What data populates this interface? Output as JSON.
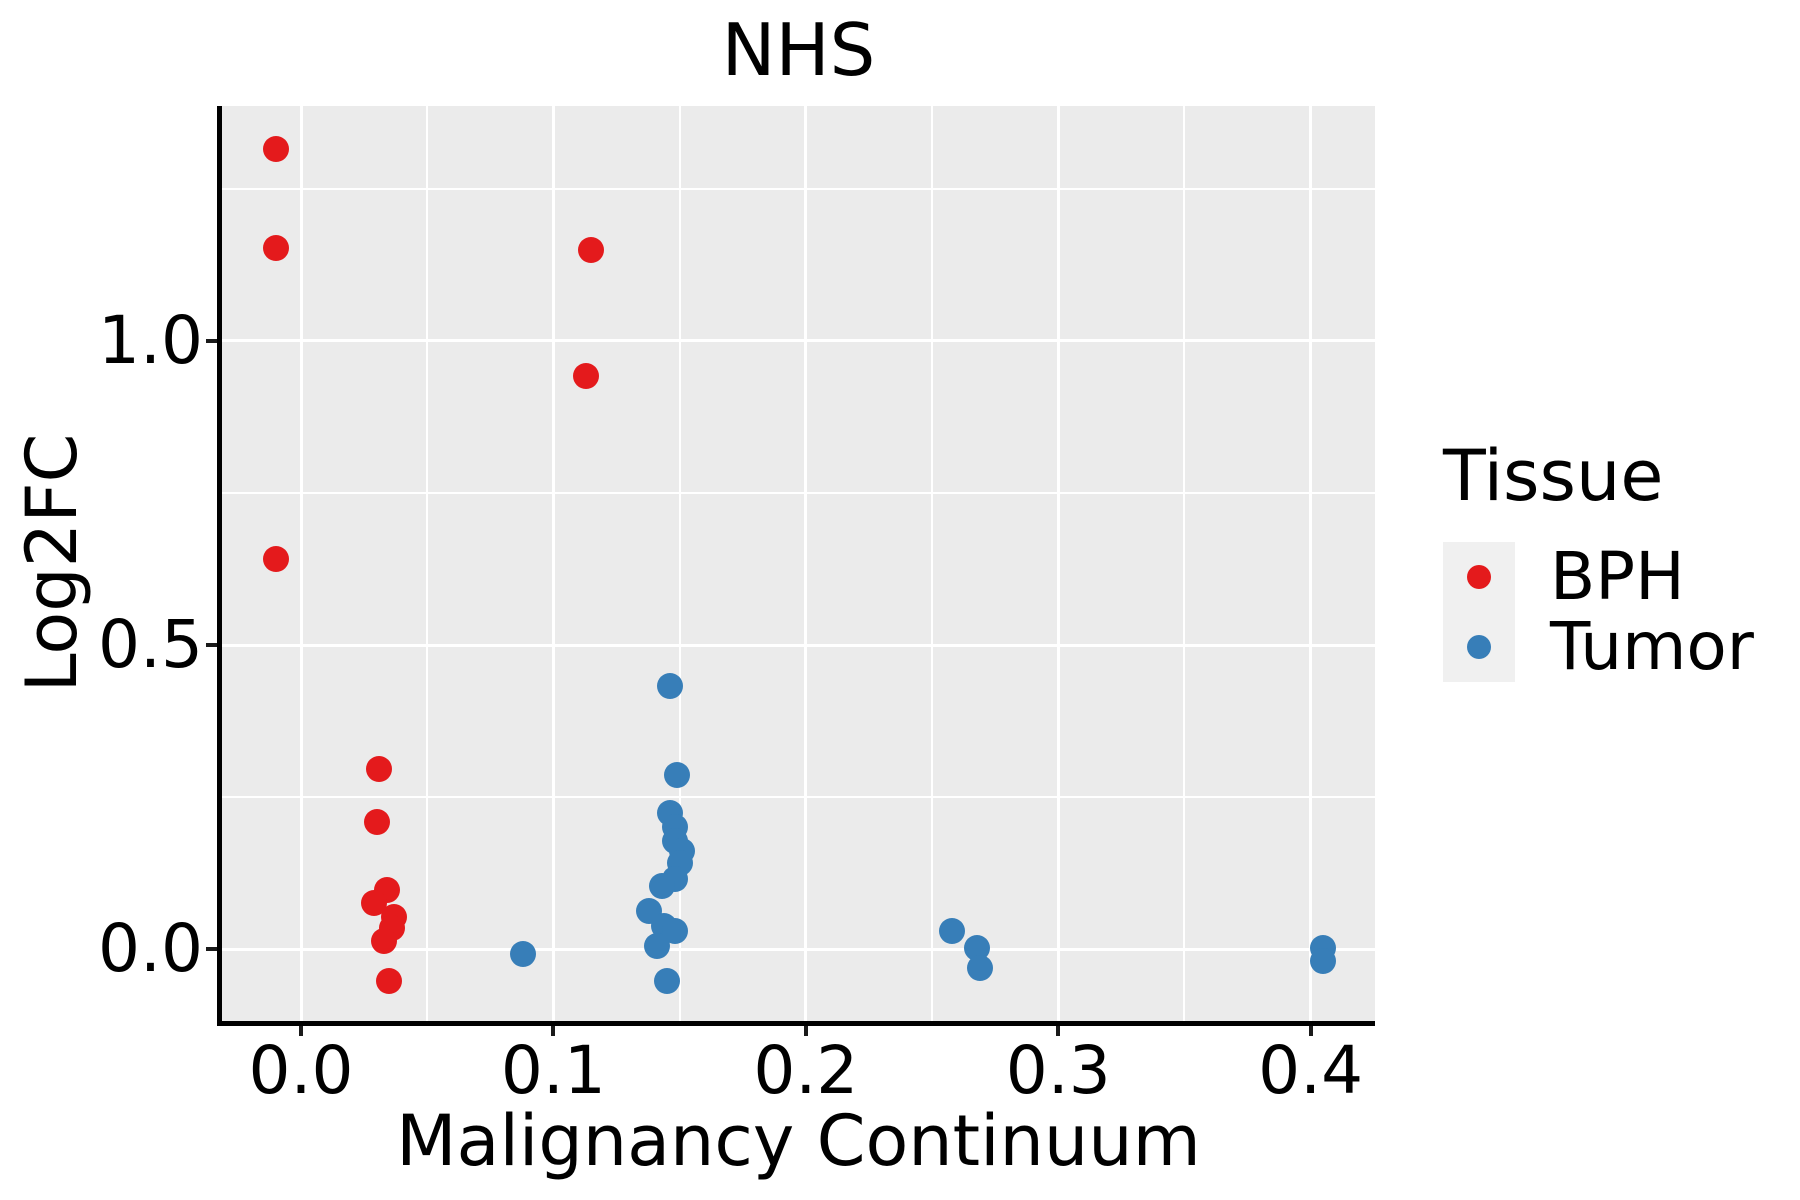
{
  "title": "NHS",
  "colors": {
    "panel_fill": "#EBEBEB",
    "grid": "#FFFFFF",
    "spine": "#000000",
    "legend_key_fill": "#F0F0F0",
    "bph": "#E41A1C",
    "tumor": "#377EB8"
  },
  "chart_data": {
    "type": "scatter",
    "title": "NHS",
    "xlabel": "Malignancy Continuum",
    "ylabel": "Log2FC",
    "xlim": [
      -0.0313,
      0.4255
    ],
    "ylim": [
      -0.1184,
      1.3865
    ],
    "x_ticks": [
      0.0,
      0.1,
      0.2,
      0.3,
      0.4
    ],
    "x_tick_labels": [
      "0.0",
      "0.1",
      "0.2",
      "0.3",
      "0.4"
    ],
    "y_ticks": [
      0.0,
      0.5,
      1.0
    ],
    "y_tick_labels": [
      "0.0",
      "0.5",
      "1.0"
    ],
    "x_minor_ticks": [
      0.05,
      0.15,
      0.25,
      0.35
    ],
    "y_minor_ticks": [
      0.25,
      0.75,
      1.25
    ],
    "grid": true,
    "legend_title": "Tissue",
    "legend_position": "right",
    "series": [
      {
        "name": "BPH",
        "color": "#E41A1C",
        "points": [
          [
            -0.01,
            1.316
          ],
          [
            -0.01,
            1.153
          ],
          [
            -0.01,
            0.641
          ],
          [
            0.115,
            1.15
          ],
          [
            0.113,
            0.942
          ],
          [
            0.031,
            0.296
          ],
          [
            0.03,
            0.209
          ],
          [
            0.034,
            0.097
          ],
          [
            0.029,
            0.076
          ],
          [
            0.037,
            0.052
          ],
          [
            0.036,
            0.035
          ],
          [
            0.033,
            0.013
          ],
          [
            0.035,
            -0.052
          ]
        ]
      },
      {
        "name": "Tumor",
        "color": "#377EB8",
        "points": [
          [
            0.088,
            -0.008
          ],
          [
            0.146,
            0.433
          ],
          [
            0.149,
            0.286
          ],
          [
            0.146,
            0.224
          ],
          [
            0.148,
            0.2
          ],
          [
            0.148,
            0.178
          ],
          [
            0.151,
            0.161
          ],
          [
            0.15,
            0.142
          ],
          [
            0.148,
            0.115
          ],
          [
            0.143,
            0.104
          ],
          [
            0.138,
            0.062
          ],
          [
            0.144,
            0.038
          ],
          [
            0.148,
            0.03
          ],
          [
            0.141,
            0.005
          ],
          [
            0.145,
            -0.053
          ],
          [
            0.258,
            0.03
          ],
          [
            0.268,
            0.002
          ],
          [
            0.269,
            -0.031
          ],
          [
            0.405,
            0.001
          ],
          [
            0.405,
            -0.019
          ]
        ]
      }
    ]
  }
}
